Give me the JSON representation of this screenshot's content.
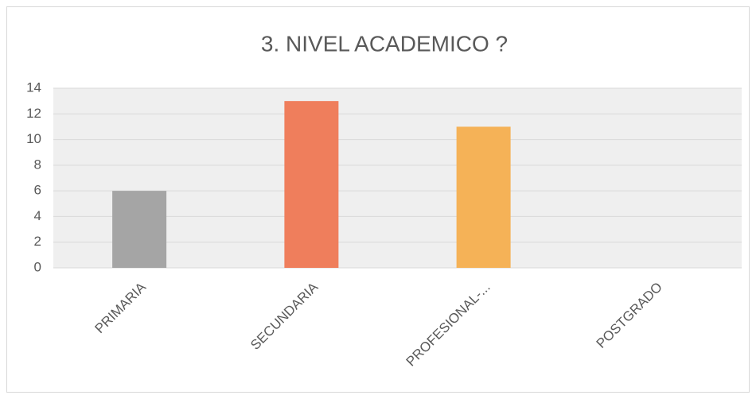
{
  "chart_data": {
    "type": "bar",
    "title": "3. NIVEL ACADEMICO ?",
    "categories": [
      "PRIMARIA",
      "SECUNDARIA",
      "PROFESIONAL-...",
      "POSTGRADO"
    ],
    "values": [
      6,
      13,
      11,
      0
    ],
    "colors": [
      "#a5a5a5",
      "#ef7e5c",
      "#f5b257"
    ],
    "ylim": [
      0,
      14
    ],
    "yticks": [
      0,
      2,
      4,
      6,
      8,
      10,
      12,
      14
    ],
    "grid": true
  }
}
